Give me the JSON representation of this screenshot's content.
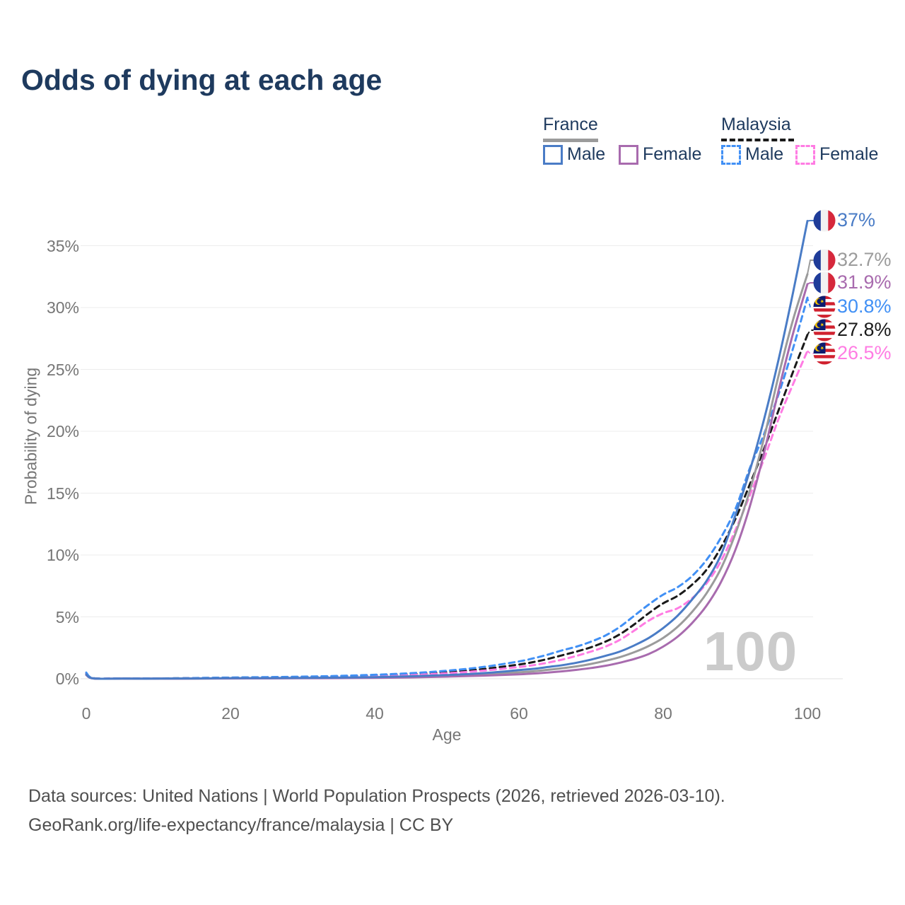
{
  "header": {
    "title": "Odds of dying at each age"
  },
  "legend": {
    "groups": [
      {
        "title": "France",
        "line_style": "solid",
        "line_color": "#9b9b9b",
        "items": [
          {
            "label": "Male",
            "color": "#4a7cc6"
          },
          {
            "label": "Female",
            "color": "#a86bae"
          }
        ]
      },
      {
        "title": "Malaysia",
        "line_style": "dashed",
        "line_color": "#1a1a1a",
        "items": [
          {
            "label": "Male",
            "color": "#4190f5"
          },
          {
            "label": "Female",
            "color": "#ff7ce3"
          }
        ]
      }
    ]
  },
  "chart": {
    "y_axis": {
      "label": "Probability of dying",
      "ticks": [
        {
          "label": "0%",
          "value": 0
        },
        {
          "label": "5%",
          "value": 5
        },
        {
          "label": "10%",
          "value": 10
        },
        {
          "label": "15%",
          "value": 15
        },
        {
          "label": "20%",
          "value": 20
        },
        {
          "label": "25%",
          "value": 25
        },
        {
          "label": "30%",
          "value": 30
        },
        {
          "label": "35%",
          "value": 35
        }
      ]
    },
    "x_axis": {
      "label": "Age",
      "ticks": [
        {
          "label": "0",
          "value": 0
        },
        {
          "label": "20",
          "value": 20
        },
        {
          "label": "40",
          "value": 40
        },
        {
          "label": "60",
          "value": 60
        },
        {
          "label": "80",
          "value": 80
        },
        {
          "label": "100",
          "value": 100
        }
      ]
    },
    "watermark": "100"
  },
  "chart_data": {
    "type": "line",
    "title": "Odds of dying at each age",
    "xlabel": "Age",
    "ylabel": "Probability of dying",
    "unit": "%",
    "xlim": [
      0,
      100
    ],
    "ylim": [
      0,
      37
    ],
    "grid": "horizontal",
    "legend_position": "top-right",
    "ages": [
      0,
      1,
      5,
      10,
      15,
      20,
      25,
      30,
      35,
      40,
      45,
      50,
      55,
      60,
      62,
      64,
      66,
      68,
      70,
      72,
      74,
      76,
      78,
      80,
      82,
      84,
      86,
      88,
      90,
      92,
      94,
      96,
      98,
      100
    ],
    "series": [
      {
        "name": "France Male",
        "country": "France",
        "sex": "Male",
        "color": "#4a7cc6",
        "dash": false,
        "end_label": "37%",
        "end_value": 37.0,
        "values": [
          0.35,
          0.03,
          0.01,
          0.01,
          0.02,
          0.05,
          0.06,
          0.07,
          0.09,
          0.13,
          0.2,
          0.3,
          0.45,
          0.7,
          0.8,
          0.95,
          1.1,
          1.3,
          1.55,
          1.85,
          2.2,
          2.7,
          3.3,
          4.1,
          5.1,
          6.4,
          7.9,
          10.0,
          13.2,
          16.8,
          21.0,
          25.8,
          31.2,
          37.0
        ]
      },
      {
        "name": "France Both sexes",
        "country": "France",
        "sex": "Both",
        "color": "#9b9b9b",
        "dash": false,
        "end_label": "32.7%",
        "end_value": 32.7,
        "values": [
          0.33,
          0.025,
          0.01,
          0.01,
          0.015,
          0.035,
          0.045,
          0.055,
          0.07,
          0.1,
          0.15,
          0.23,
          0.35,
          0.52,
          0.6,
          0.72,
          0.85,
          1.0,
          1.2,
          1.45,
          1.75,
          2.15,
          2.65,
          3.3,
          4.2,
          5.4,
          6.9,
          8.9,
          11.7,
          15.2,
          19.5,
          24.5,
          29.0,
          32.7
        ]
      },
      {
        "name": "France Female",
        "country": "France",
        "sex": "Female",
        "color": "#a86bae",
        "dash": false,
        "end_label": "31.9%",
        "end_value": 31.9,
        "values": [
          0.3,
          0.02,
          0.01,
          0.01,
          0.01,
          0.02,
          0.03,
          0.04,
          0.05,
          0.07,
          0.11,
          0.17,
          0.25,
          0.36,
          0.42,
          0.5,
          0.6,
          0.72,
          0.87,
          1.05,
          1.3,
          1.6,
          2.0,
          2.6,
          3.4,
          4.5,
          5.9,
          7.8,
          10.4,
          13.9,
          18.3,
          23.3,
          27.9,
          31.9
        ]
      },
      {
        "name": "Malaysia Male",
        "country": "Malaysia",
        "sex": "Male",
        "color": "#4190f5",
        "dash": true,
        "end_label": "30.8%",
        "end_value": 30.8,
        "values": [
          0.5,
          0.05,
          0.03,
          0.03,
          0.06,
          0.1,
          0.13,
          0.17,
          0.23,
          0.32,
          0.45,
          0.65,
          0.95,
          1.4,
          1.65,
          1.95,
          2.3,
          2.6,
          3.0,
          3.5,
          4.2,
          5.1,
          6.0,
          6.8,
          7.4,
          8.3,
          9.6,
          11.4,
          13.7,
          17.0,
          19.8,
          23.0,
          26.7,
          30.8
        ]
      },
      {
        "name": "Malaysia Both sexes",
        "country": "Malaysia",
        "sex": "Both",
        "color": "#1a1a1a",
        "dash": true,
        "end_label": "27.8%",
        "end_value": 27.8,
        "values": [
          0.45,
          0.045,
          0.025,
          0.025,
          0.05,
          0.08,
          0.1,
          0.13,
          0.18,
          0.26,
          0.37,
          0.53,
          0.78,
          1.15,
          1.35,
          1.6,
          1.9,
          2.2,
          2.55,
          3.0,
          3.6,
          4.4,
          5.3,
          6.1,
          6.7,
          7.6,
          8.8,
          10.6,
          12.9,
          15.7,
          18.6,
          21.7,
          24.8,
          27.8
        ]
      },
      {
        "name": "Malaysia Female",
        "country": "Malaysia",
        "sex": "Female",
        "color": "#ff7ce3",
        "dash": true,
        "end_label": "26.5%",
        "end_value": 26.5,
        "values": [
          0.4,
          0.04,
          0.02,
          0.02,
          0.04,
          0.06,
          0.08,
          0.1,
          0.14,
          0.2,
          0.3,
          0.44,
          0.65,
          0.95,
          1.1,
          1.3,
          1.55,
          1.85,
          2.2,
          2.6,
          3.15,
          3.9,
          4.7,
          5.3,
          5.7,
          6.5,
          7.7,
          9.5,
          12.0,
          14.8,
          17.8,
          21.0,
          23.8,
          26.5
        ]
      }
    ]
  },
  "footer": {
    "line1": "Data sources: United Nations | World Population Prospects (2026, retrieved 2026-03-10).",
    "line2": "GeoRank.org/life-expectancy/france/malaysia | CC BY"
  }
}
